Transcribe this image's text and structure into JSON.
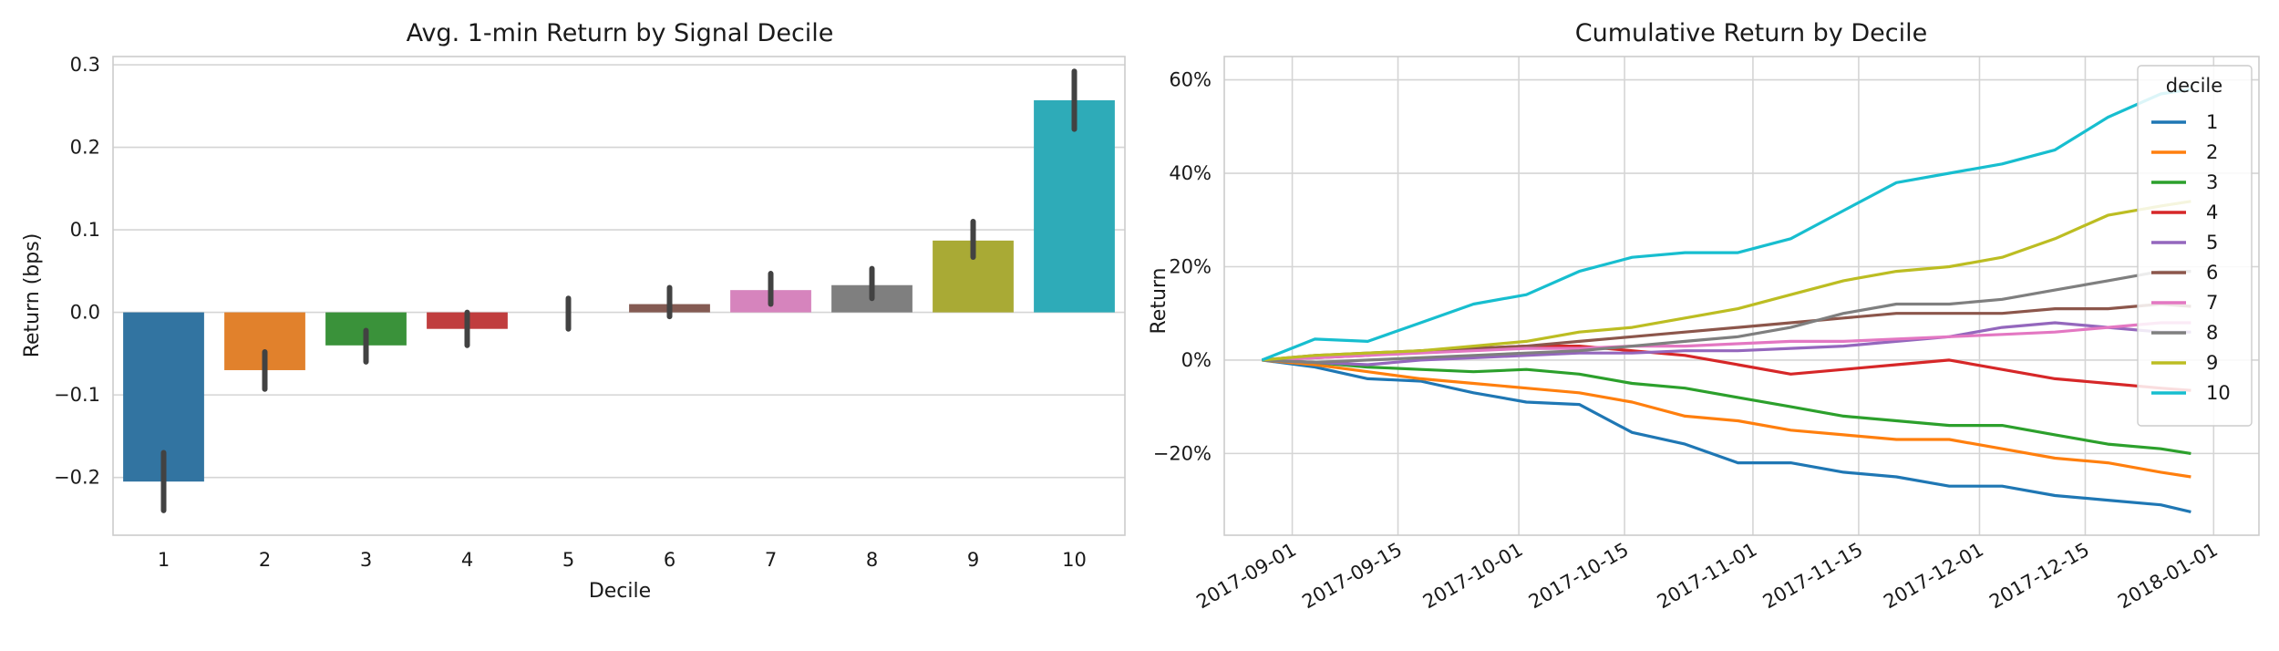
{
  "chart_data": [
    {
      "type": "bar",
      "title": "Avg. 1-min Return by Signal Decile",
      "xlabel": "Decile",
      "ylabel": "Return (bps)",
      "categories": [
        "1",
        "2",
        "3",
        "4",
        "5",
        "6",
        "7",
        "8",
        "9",
        "10"
      ],
      "values": [
        -0.205,
        -0.07,
        -0.04,
        -0.02,
        0.0,
        0.01,
        0.027,
        0.033,
        0.087,
        0.257
      ],
      "error_low": [
        -0.24,
        -0.093,
        -0.06,
        -0.04,
        -0.02,
        -0.005,
        0.01,
        0.017,
        0.067,
        0.222
      ],
      "error_high": [
        -0.17,
        -0.048,
        -0.022,
        0.0,
        0.017,
        0.03,
        0.047,
        0.053,
        0.11,
        0.292
      ],
      "colors": [
        "#3274a1",
        "#e1812c",
        "#3a923a",
        "#c03d3e",
        "#9372b2",
        "#845b53",
        "#d684bd",
        "#7f7f7f",
        "#a9aa35",
        "#2eabb8"
      ],
      "error_color": "#424242",
      "ylim": [
        -0.27,
        0.31
      ],
      "yticks": [
        -0.2,
        -0.1,
        0.0,
        0.1,
        0.2,
        0.3
      ],
      "ytick_labels": [
        "−0.2",
        "−0.1",
        "0.0",
        "0.1",
        "0.2",
        "0.3"
      ],
      "grid": true
    },
    {
      "type": "line",
      "title": "Cumulative Return by Decile",
      "xlabel": "",
      "ylabel": "Return",
      "legend_title": "decile",
      "legend_position": "top-right",
      "grid": true,
      "x": [
        "2017-08-28",
        "2017-09-04",
        "2017-09-11",
        "2017-09-18",
        "2017-09-25",
        "2017-10-02",
        "2017-10-09",
        "2017-10-16",
        "2017-10-23",
        "2017-10-30",
        "2017-11-06",
        "2017-11-13",
        "2017-11-20",
        "2017-11-27",
        "2017-12-04",
        "2017-12-11",
        "2017-12-18",
        "2017-12-25",
        "2017-12-29"
      ],
      "xlim": [
        "2017-08-23",
        "2018-01-07"
      ],
      "xticks": [
        "2017-09-01",
        "2017-09-15",
        "2017-10-01",
        "2017-10-15",
        "2017-11-01",
        "2017-11-15",
        "2017-12-01",
        "2017-12-15",
        "2018-01-01"
      ],
      "ylim": [
        -37.5,
        65
      ],
      "yticks": [
        -20,
        0,
        20,
        40,
        60
      ],
      "ytick_labels": [
        "−20%",
        "0%",
        "20%",
        "40%",
        "60%"
      ],
      "series": [
        {
          "name": "1",
          "color": "#1f77b4",
          "values": [
            0,
            -1.5,
            -4,
            -4.5,
            -7,
            -9,
            -9.5,
            -15.5,
            -18,
            -22,
            -22,
            -24,
            -25,
            -27,
            -27,
            -29,
            -30,
            -31,
            -32.5
          ]
        },
        {
          "name": "2",
          "color": "#ff7f0e",
          "values": [
            0,
            -1,
            -2.5,
            -4,
            -5,
            -6,
            -7,
            -9,
            -12,
            -13,
            -15,
            -16,
            -17,
            -17,
            -19,
            -21,
            -22,
            -24,
            -25
          ]
        },
        {
          "name": "3",
          "color": "#2ca02c",
          "values": [
            0,
            -0.5,
            -1.5,
            -2,
            -2.5,
            -2,
            -3,
            -5,
            -6,
            -8,
            -10,
            -12,
            -13,
            -14,
            -14,
            -16,
            -18,
            -19,
            -20
          ]
        },
        {
          "name": "4",
          "color": "#d62728",
          "values": [
            0,
            0.5,
            1,
            2,
            2.5,
            3,
            3,
            2,
            1,
            -1,
            -3,
            -2,
            -1,
            0,
            -2,
            -4,
            -5,
            -6,
            -6.5
          ]
        },
        {
          "name": "5",
          "color": "#9467bd",
          "values": [
            0,
            -0.5,
            -1,
            0,
            0.5,
            1,
            1.5,
            1.5,
            2,
            2,
            2.5,
            3,
            4,
            5,
            7,
            8,
            7,
            6,
            6
          ]
        },
        {
          "name": "6",
          "color": "#8c564b",
          "values": [
            0,
            1,
            1.5,
            2,
            2.5,
            3,
            4,
            5,
            6,
            7,
            8,
            9,
            10,
            10,
            10,
            11,
            11,
            12,
            11.5
          ]
        },
        {
          "name": "7",
          "color": "#e377c2",
          "values": [
            0,
            0.5,
            1,
            1.5,
            2,
            2.5,
            2.5,
            3,
            3,
            3.5,
            4,
            4,
            4.5,
            5,
            5.5,
            6,
            7,
            8,
            8
          ]
        },
        {
          "name": "8",
          "color": "#7f7f7f",
          "values": [
            0,
            -0.5,
            0,
            0.5,
            1,
            1.5,
            2,
            3,
            4,
            5,
            7,
            10,
            12,
            12,
            13,
            15,
            17,
            19,
            19
          ]
        },
        {
          "name": "9",
          "color": "#bcbd22",
          "values": [
            0,
            1,
            1.5,
            2,
            3,
            4,
            6,
            7,
            9,
            11,
            14,
            17,
            19,
            20,
            22,
            26,
            31,
            33,
            34
          ]
        },
        {
          "name": "10",
          "color": "#17becf",
          "values": [
            0,
            4.5,
            4,
            8,
            12,
            14,
            19,
            22,
            23,
            23,
            26,
            32,
            38,
            40,
            42,
            45,
            52,
            57,
            58
          ]
        }
      ]
    }
  ]
}
